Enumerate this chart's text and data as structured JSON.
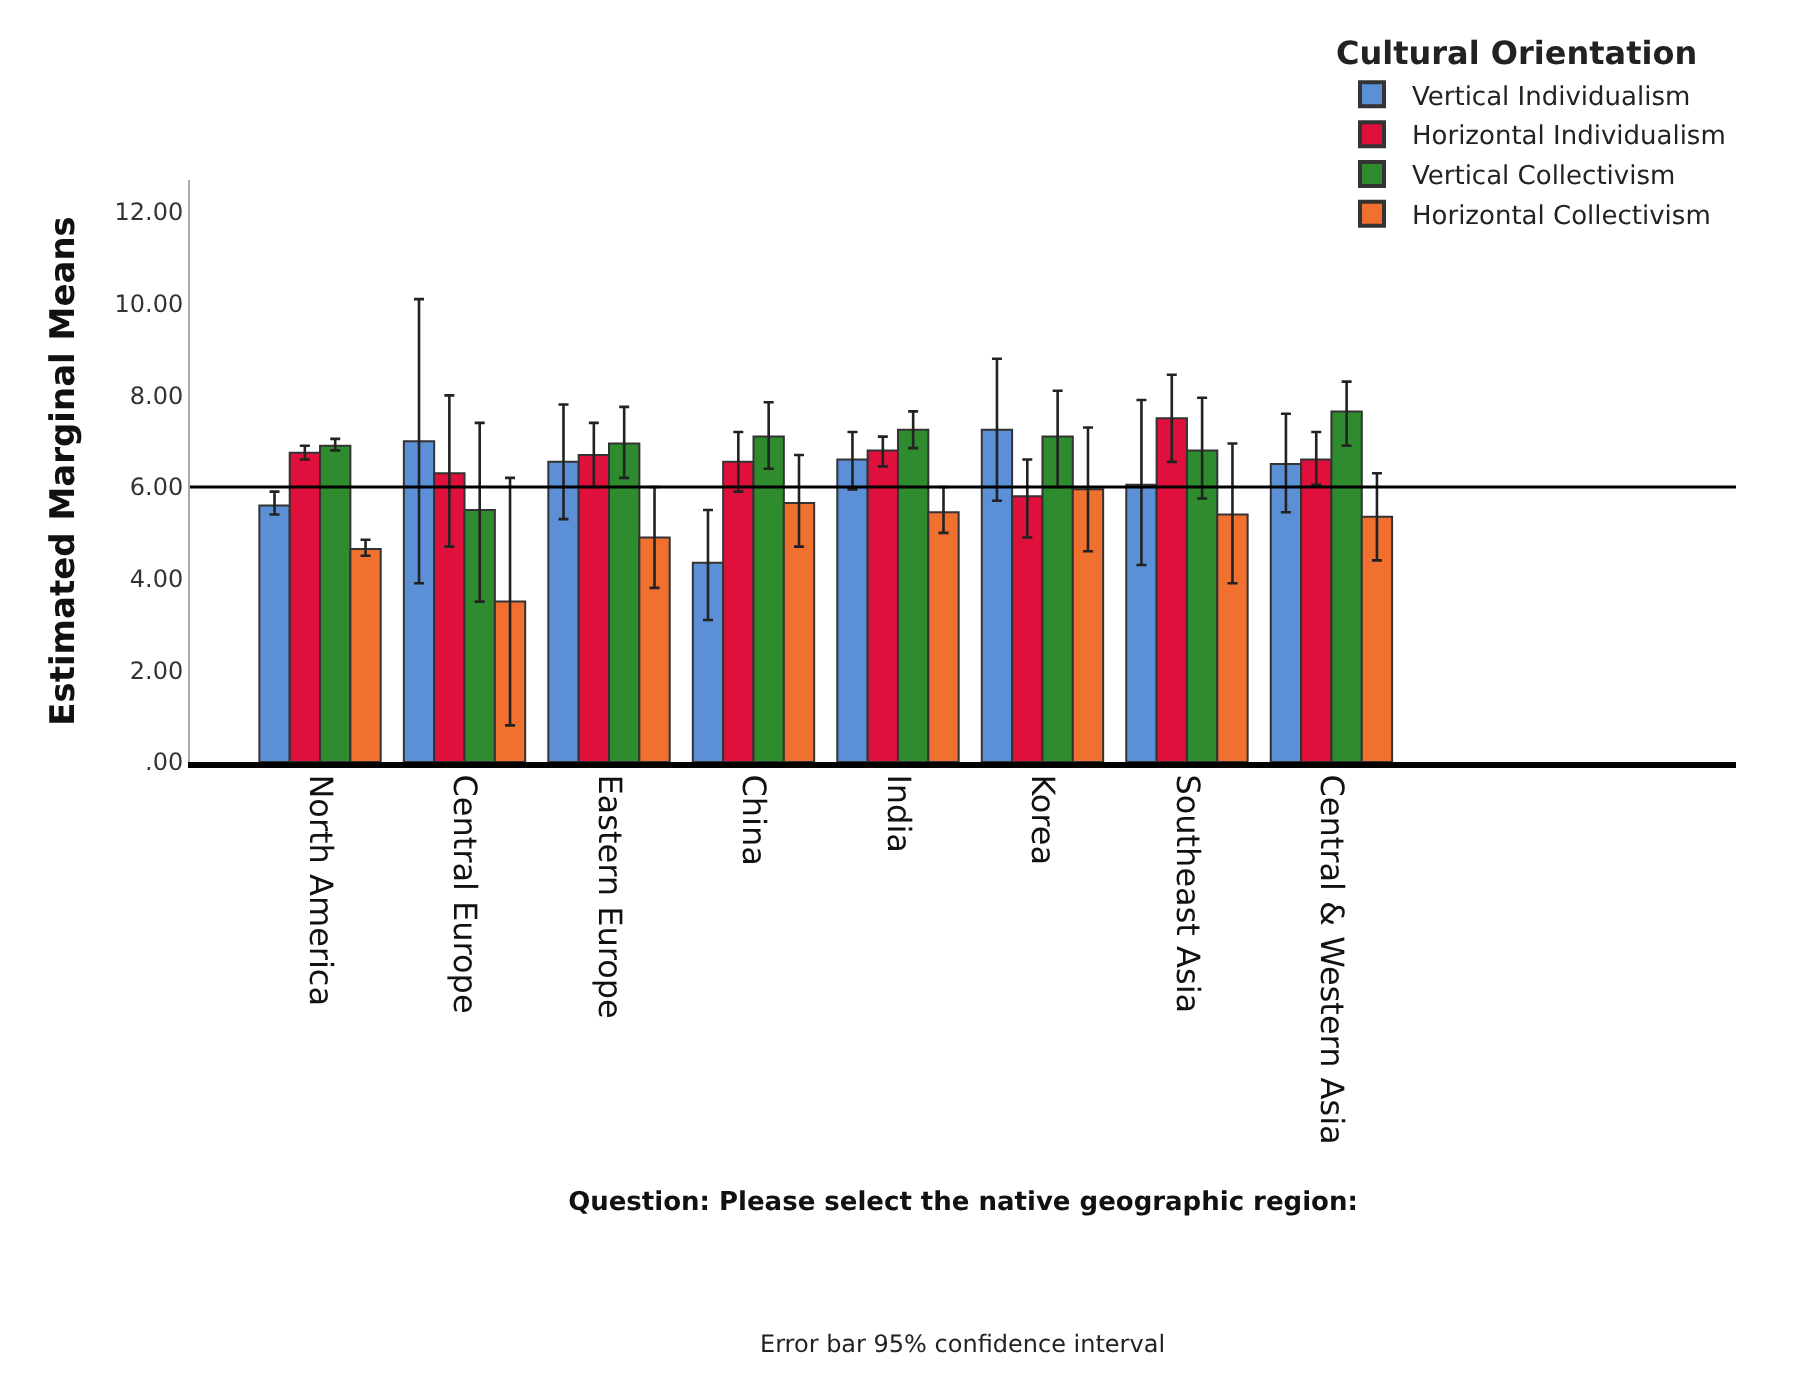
{
  "chart_data": {
    "type": "bar",
    "xlabel": "Question: Please select the native geographic region:",
    "ylabel": "Estimated Marginal Means",
    "legend_title": "Cultural Orientation",
    "categories": [
      "North America",
      "Central Europe",
      "Eastern Europe",
      "China",
      "India",
      "Korea",
      "Southeast Asia",
      "Central & Western Asia"
    ],
    "series": [
      {
        "name": "Vertical Individualism",
        "color": "#5b8fd6",
        "values": [
          5.6,
          7.0,
          6.55,
          4.35,
          6.6,
          7.25,
          6.05,
          6.5
        ],
        "errors": [
          [
            5.4,
            5.9
          ],
          [
            3.9,
            10.1
          ],
          [
            5.3,
            7.8
          ],
          [
            3.1,
            5.5
          ],
          [
            5.95,
            7.2
          ],
          [
            5.7,
            8.8
          ],
          [
            4.3,
            7.9
          ],
          [
            5.45,
            7.6
          ]
        ]
      },
      {
        "name": "Horizontal Individualism",
        "color": "#e0103c",
        "values": [
          6.75,
          6.3,
          6.7,
          6.55,
          6.8,
          5.8,
          7.5,
          6.6
        ],
        "errors": [
          [
            6.6,
            6.9
          ],
          [
            4.7,
            8.0
          ],
          [
            6.0,
            7.4
          ],
          [
            5.9,
            7.2
          ],
          [
            6.45,
            7.1
          ],
          [
            4.9,
            6.6
          ],
          [
            6.55,
            8.45
          ],
          [
            6.05,
            7.2
          ]
        ]
      },
      {
        "name": "Vertical Collectivism",
        "color": "#2e8b2e",
        "values": [
          6.9,
          5.5,
          6.95,
          7.1,
          7.25,
          7.1,
          6.8,
          7.65
        ],
        "errors": [
          [
            6.8,
            7.05
          ],
          [
            3.5,
            7.4
          ],
          [
            6.2,
            7.75
          ],
          [
            6.4,
            7.85
          ],
          [
            6.85,
            7.65
          ],
          [
            6.0,
            8.1
          ],
          [
            5.75,
            7.95
          ],
          [
            6.9,
            8.3
          ]
        ]
      },
      {
        "name": "Horizontal Collectivism",
        "color": "#f07030",
        "values": [
          4.65,
          3.5,
          4.9,
          5.65,
          5.45,
          5.95,
          5.4,
          5.35
        ],
        "errors": [
          [
            4.5,
            4.85
          ],
          [
            0.8,
            6.2
          ],
          [
            3.8,
            6.0
          ],
          [
            4.7,
            6.7
          ],
          [
            5.0,
            6.0
          ],
          [
            4.6,
            7.3
          ],
          [
            3.9,
            6.95
          ],
          [
            4.4,
            6.3
          ]
        ]
      }
    ],
    "ylim": [
      0,
      12.7
    ],
    "yticks": [
      {
        "value": 0,
        "label": ".00"
      },
      {
        "value": 2,
        "label": "2.00"
      },
      {
        "value": 4,
        "label": "4.00"
      },
      {
        "value": 6,
        "label": "6.00"
      },
      {
        "value": 8,
        "label": "8.00"
      },
      {
        "value": 10,
        "label": "10.00"
      },
      {
        "value": 12,
        "label": "12.00"
      }
    ],
    "ref_lines": [
      {
        "axis": "y",
        "value": 6,
        "label": null,
        "color": "#000000"
      }
    ],
    "annotations": [
      "Error bar 95% confidence interval"
    ],
    "legend": "top right"
  }
}
